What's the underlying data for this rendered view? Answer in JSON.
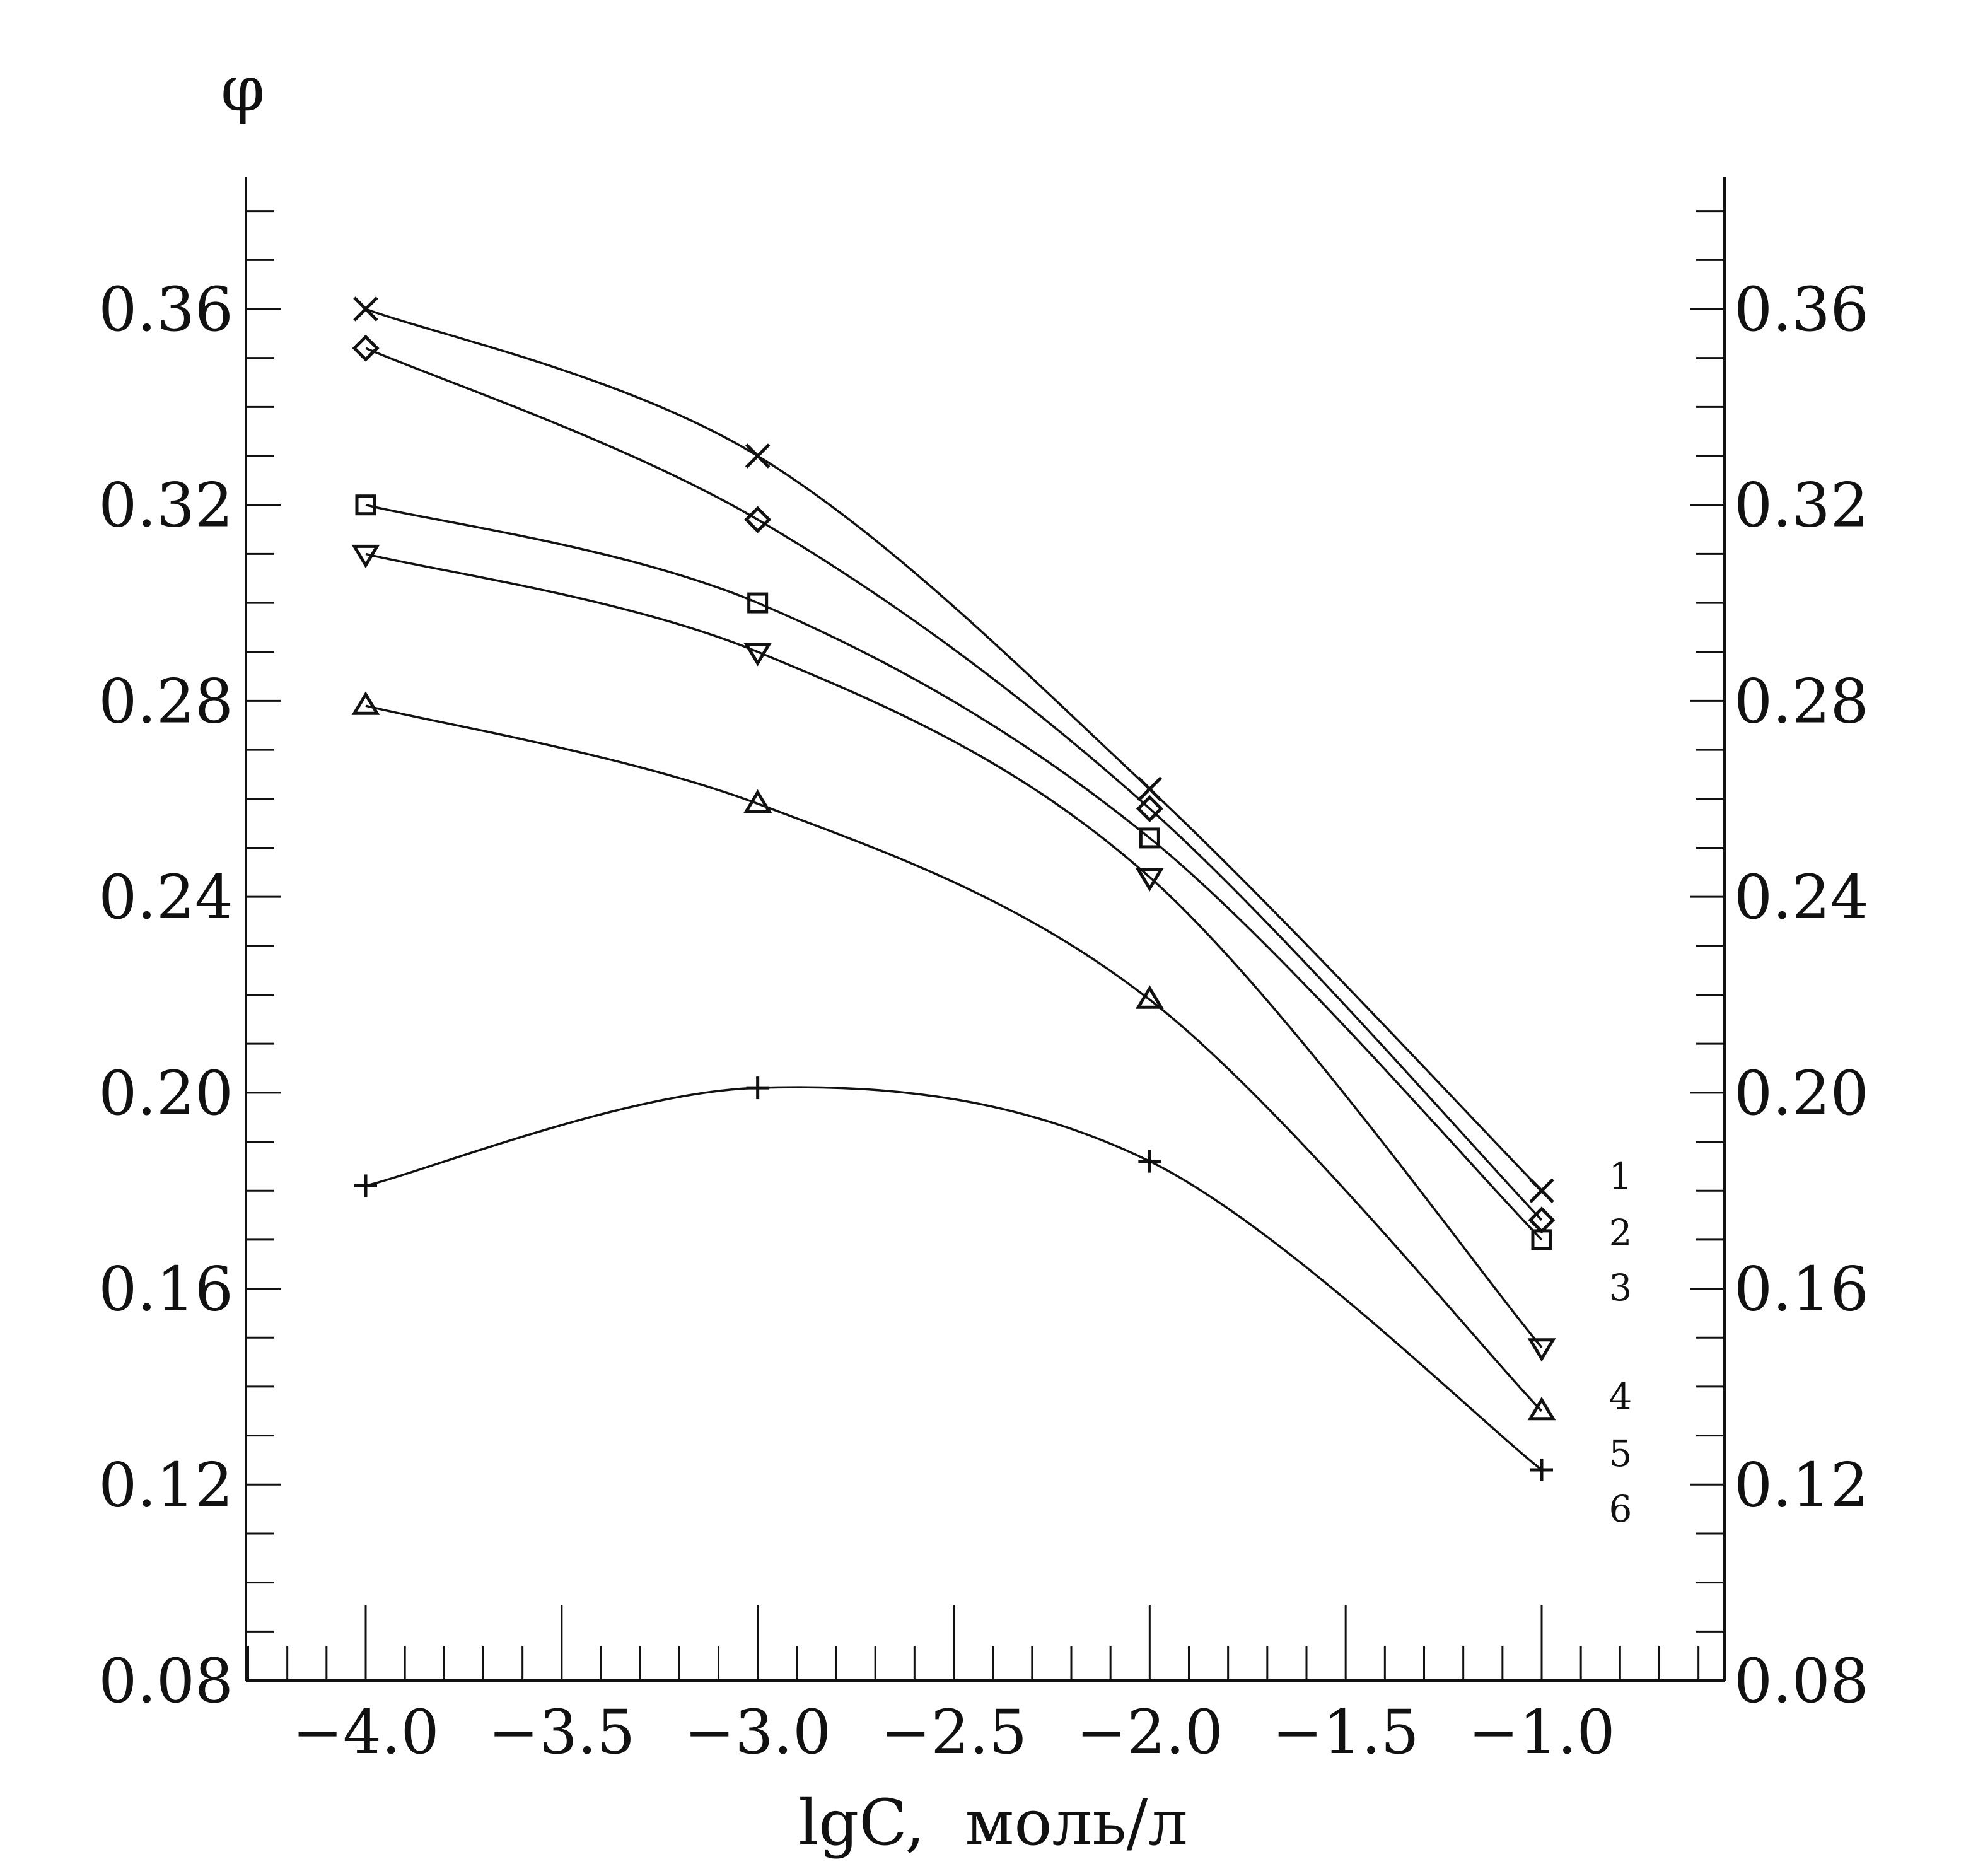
{
  "chart_data": {
    "type": "line",
    "title": "",
    "ylabel": "φ",
    "xlabel": "lgC,  моль/л",
    "xlim": [
      -4.3,
      -0.6
    ],
    "ylim": [
      0.08,
      0.39
    ],
    "x_ticks": [
      -4.0,
      -3.5,
      -3.0,
      -2.5,
      -2.0,
      -1.5,
      -1.0
    ],
    "x_tick_labels": [
      "−4.0",
      "−3.5",
      "−3.0",
      "−2.5",
      "−2.0",
      "−1.5",
      "−1.0"
    ],
    "y_ticks": [
      0.08,
      0.12,
      0.16,
      0.2,
      0.24,
      0.28,
      0.32,
      0.36
    ],
    "y_tick_labels": [
      "0.08",
      "0.12",
      "0.16",
      "0.20",
      "0.24",
      "0.28",
      "0.32",
      "0.36"
    ],
    "y_minor_step": 0.01,
    "x_minor_step": 0.1,
    "grid": false,
    "right_axis": true,
    "x": [
      -4.0,
      -3.0,
      -2.0,
      -1.0
    ],
    "series": [
      {
        "label": "1",
        "marker": "x-marker",
        "values": [
          0.36,
          0.33,
          0.262,
          0.18
        ]
      },
      {
        "label": "2",
        "marker": "diamond-marker",
        "values": [
          0.352,
          0.317,
          0.258,
          0.174
        ]
      },
      {
        "label": "3",
        "marker": "square-marker",
        "values": [
          0.32,
          0.3,
          0.252,
          0.17
        ]
      },
      {
        "label": "4",
        "marker": "down-triangle-marker",
        "values": [
          0.31,
          0.29,
          0.244,
          0.148
        ]
      },
      {
        "label": "5",
        "marker": "up-triangle-marker",
        "values": [
          0.279,
          0.259,
          0.219,
          0.135
        ]
      },
      {
        "label": "6",
        "marker": "plus-marker",
        "values": [
          0.181,
          0.201,
          0.186,
          0.123
        ]
      }
    ],
    "curve_labels_position": "right of final points, ordered top to bottom"
  }
}
